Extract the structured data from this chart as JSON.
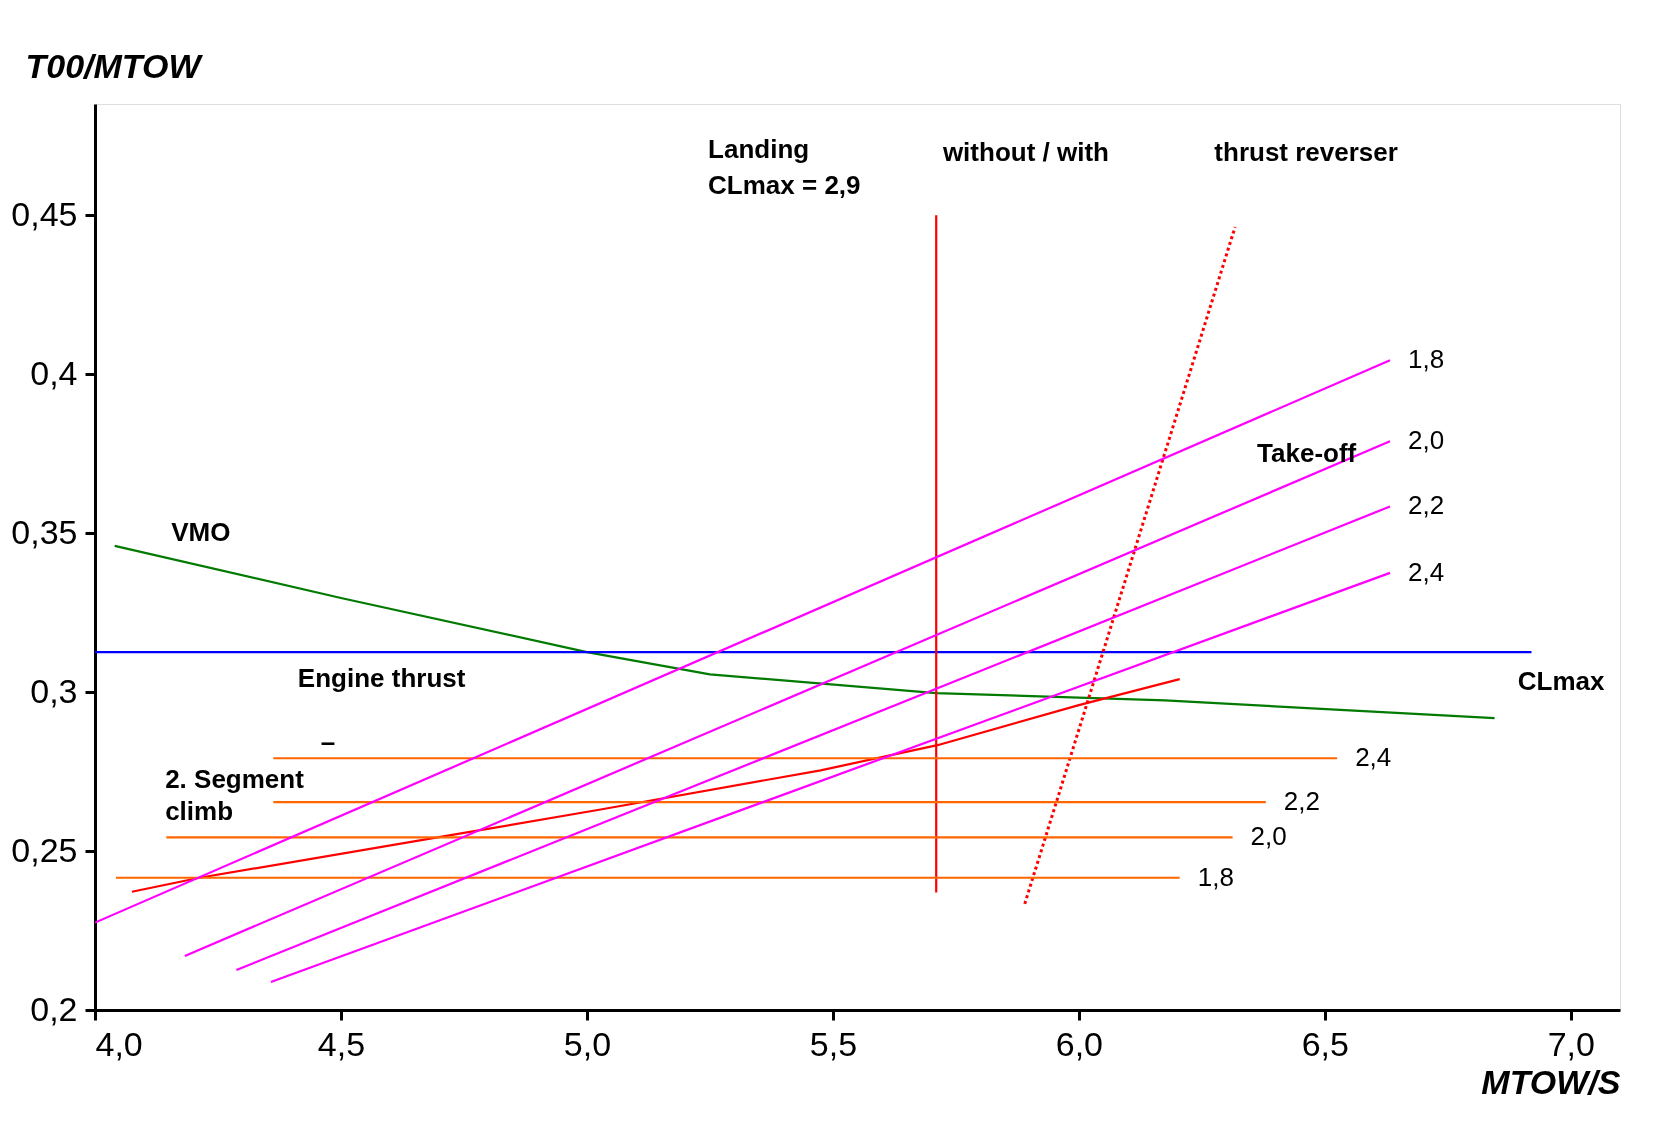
{
  "chart_data": {
    "type": "line",
    "xlabel": "MTOW/S",
    "ylabel": "T00/MTOW",
    "xlim": [
      4.0,
      7.1
    ],
    "ylim": [
      0.2,
      0.485
    ],
    "xticks": [
      {
        "value": 4.0,
        "label": "4,0"
      },
      {
        "value": 4.5,
        "label": "4,5"
      },
      {
        "value": 5.0,
        "label": "5,0"
      },
      {
        "value": 5.5,
        "label": "5,5"
      },
      {
        "value": 6.0,
        "label": "6,0"
      },
      {
        "value": 6.5,
        "label": "6,5"
      },
      {
        "value": 7.0,
        "label": "7,0"
      }
    ],
    "yticks": [
      {
        "value": 0.2,
        "label": "0,2"
      },
      {
        "value": 0.25,
        "label": "0,25"
      },
      {
        "value": 0.3,
        "label": "0,3"
      },
      {
        "value": 0.35,
        "label": "0,35"
      },
      {
        "value": 0.4,
        "label": "0,4"
      },
      {
        "value": 0.45,
        "label": "0,45"
      }
    ],
    "grid": false,
    "line_style": "solid",
    "series": [
      {
        "color": "#007a00",
        "x": [
          4.04,
          4.5,
          5.0,
          5.25,
          5.71,
          6.175,
          6.845
        ],
        "values": [
          0.346,
          0.3296,
          0.3126,
          0.3056,
          0.2997,
          0.2974,
          0.2918
        ]
      },
      {
        "color": "#0000ff",
        "x": [
          4.0,
          6.92
        ],
        "values": [
          0.3126,
          0.3126
        ]
      },
      {
        "color": "#ff0000",
        "x": [
          5.71,
          5.71
        ],
        "values": [
          0.45,
          0.237
        ]
      },
      {
        "color": "#ff0000",
        "line_style": "dotted",
        "x": [
          5.89,
          6.3175
        ],
        "values": [
          0.2334,
          0.4463
        ]
      },
      {
        "color": "#ff0000",
        "x": [
          4.075,
          4.2125,
          4.75,
          5.025,
          5.475,
          5.7125,
          6.0,
          6.205
        ],
        "values": [
          0.2372,
          0.2416,
          0.2557,
          0.263,
          0.2754,
          0.2833,
          0.2959,
          0.3041
        ]
      },
      {
        "name": "2,4",
        "color": "#ff6600",
        "x": [
          4.3625,
          6.525
        ],
        "values": [
          0.2792,
          0.2792
        ]
      },
      {
        "name": "2,2",
        "color": "#ff6600",
        "x": [
          4.3625,
          6.38
        ],
        "values": [
          0.2654,
          0.2654
        ]
      },
      {
        "name": "2,0",
        "color": "#ff6600",
        "x": [
          4.145,
          6.3125
        ],
        "values": [
          0.2543,
          0.2543
        ]
      },
      {
        "name": "1,8",
        "color": "#ff6600",
        "x": [
          4.0425,
          6.205
        ],
        "values": [
          0.2416,
          0.2416
        ]
      },
      {
        "name": "1,8",
        "color": "#ff00ff",
        "x": [
          4.0,
          6.6325
        ],
        "values": [
          0.2275,
          0.4044
        ]
      },
      {
        "name": "2,0",
        "color": "#ff00ff",
        "x": [
          4.1825,
          6.6325
        ],
        "values": [
          0.217,
          0.3789
        ]
      },
      {
        "name": "2,2",
        "color": "#ff00ff",
        "x": [
          4.2875,
          6.6325
        ],
        "values": [
          0.2126,
          0.3584
        ]
      },
      {
        "name": "2,4",
        "color": "#ff00ff",
        "x": [
          4.3575,
          6.6325
        ],
        "values": [
          0.2088,
          0.3375
        ]
      }
    ],
    "annotations": [
      "Landing",
      "CLmax = 2,9",
      "without / with",
      "thrust reverser",
      "Take-off",
      "VMO",
      "Engine thrust",
      "–",
      "2. Segment",
      "climb",
      "CLmax"
    ]
  }
}
